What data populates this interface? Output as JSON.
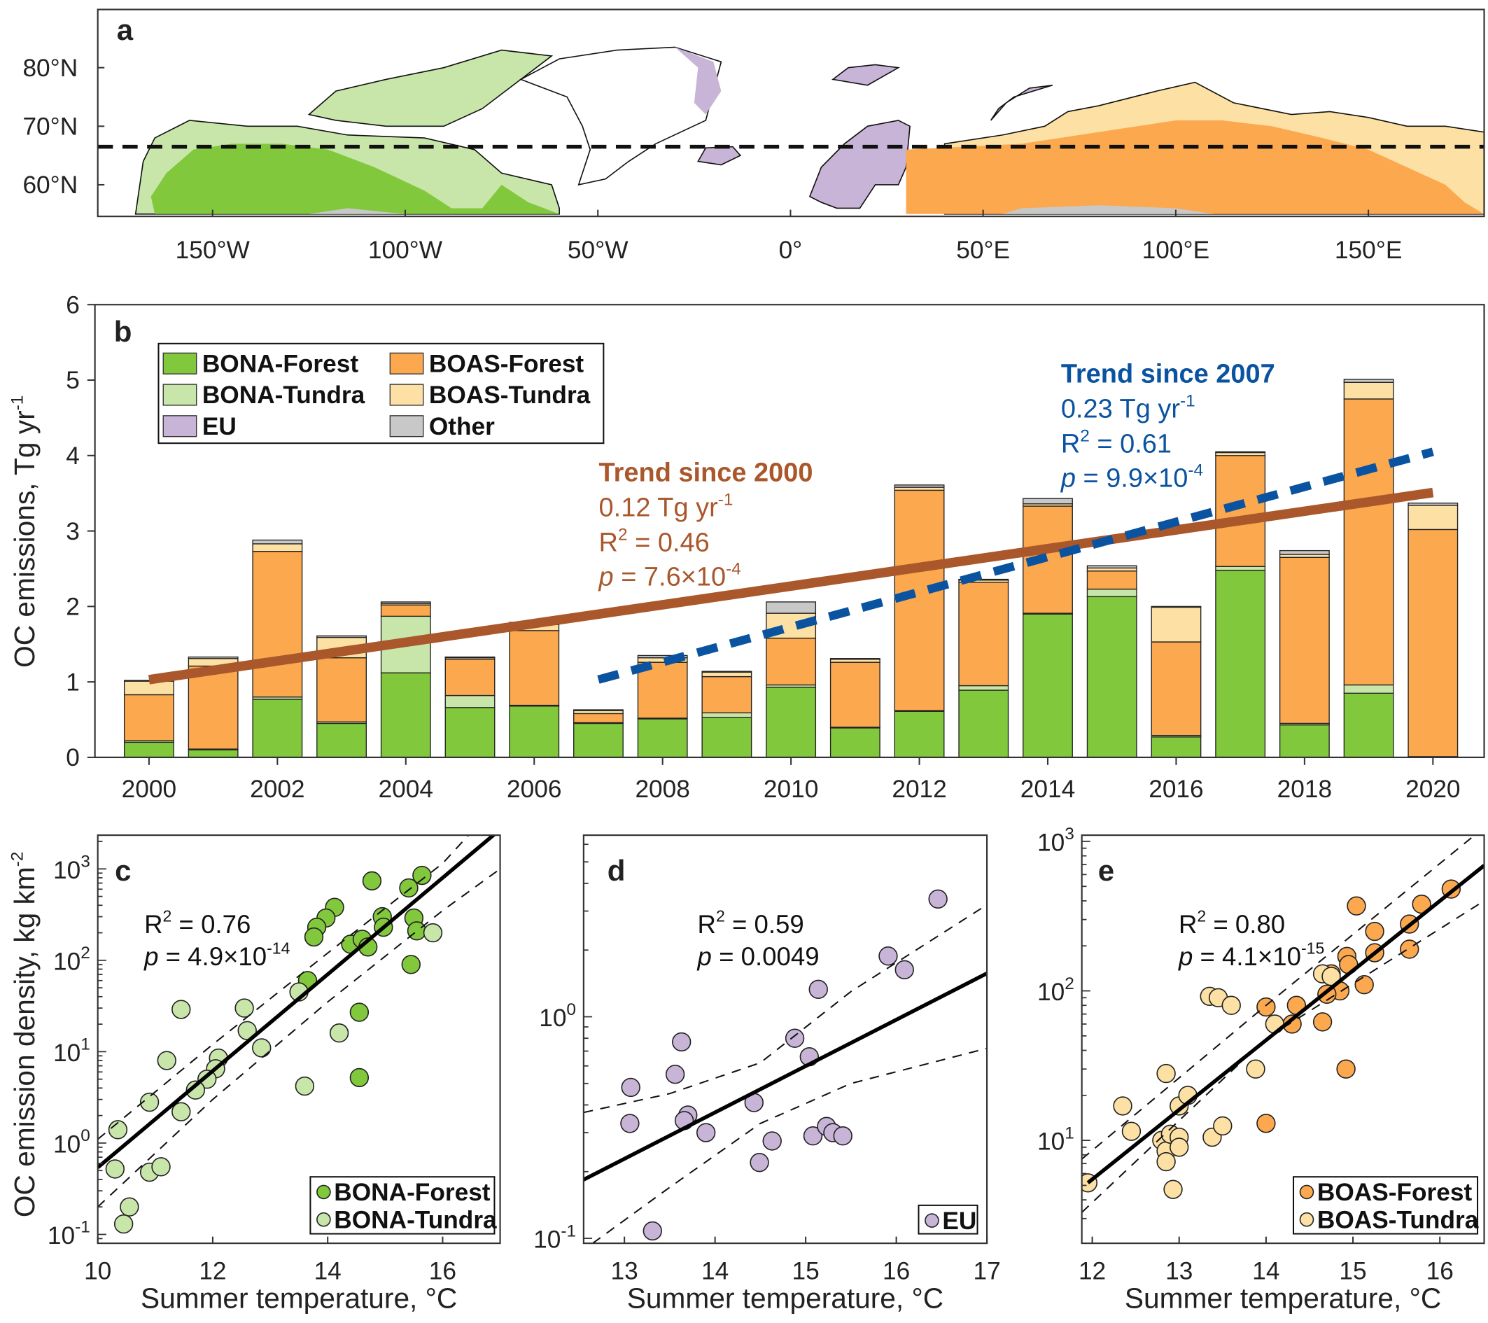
{
  "colors": {
    "BONA-Forest": "#82c83c",
    "BONA-Tundra": "#c8e6aa",
    "EU": "#c8b4d7",
    "BOAS-Forest": "#fba84f",
    "BOAS-Tundra": "#fde0a3",
    "Other": "#c8c8c8",
    "trend_2000": "#a9572b",
    "trend_2007": "#0a53a0"
  },
  "chart_data": [
    {
      "panel": "a",
      "type": "map",
      "label": "a",
      "ytick_values": [
        80,
        70,
        60
      ],
      "ytick_labels": [
        "80°N",
        "70°N",
        "60°N"
      ],
      "xtick_values": [
        -150,
        -100,
        -50,
        0,
        50,
        100,
        150
      ],
      "xtick_labels": [
        "150°W",
        "100°W",
        "50°W",
        "0°",
        "50°E",
        "100°E",
        "150°E"
      ],
      "arctic_circle_lat": 66.5,
      "regions": [
        "BONA-Forest",
        "BONA-Tundra",
        "EU",
        "BOAS-Forest",
        "BOAS-Tundra",
        "Other"
      ]
    },
    {
      "panel": "b",
      "type": "bar",
      "stacked": true,
      "label": "b",
      "ylabel": "OC emissions, Tg yr",
      "ylabel_sup": "-1",
      "ylim": [
        0,
        6
      ],
      "yticks": [
        0,
        1,
        2,
        3,
        4,
        5,
        6
      ],
      "xticks": [
        2000,
        2002,
        2004,
        2006,
        2008,
        2010,
        2012,
        2014,
        2016,
        2018,
        2020
      ],
      "categories": [
        2000,
        2001,
        2002,
        2003,
        2004,
        2005,
        2006,
        2007,
        2008,
        2009,
        2010,
        2011,
        2012,
        2013,
        2014,
        2015,
        2016,
        2017,
        2018,
        2019,
        2020
      ],
      "series": [
        {
          "name": "BONA-Forest",
          "values": [
            0.2,
            0.1,
            0.77,
            0.45,
            1.12,
            0.66,
            0.68,
            0.45,
            0.51,
            0.53,
            0.93,
            0.39,
            0.61,
            0.89,
            1.9,
            2.13,
            0.27,
            2.48,
            0.43,
            0.85,
            0.0
          ]
        },
        {
          "name": "BONA-Tundra",
          "values": [
            0.02,
            0.01,
            0.03,
            0.02,
            0.75,
            0.16,
            0.01,
            0.01,
            0.01,
            0.06,
            0.03,
            0.01,
            0.01,
            0.06,
            0.01,
            0.1,
            0.02,
            0.05,
            0.02,
            0.11,
            0.01
          ]
        },
        {
          "name": "EU",
          "values": [
            0,
            0,
            0,
            0,
            0,
            0,
            0,
            0,
            0,
            0,
            0,
            0,
            0,
            0,
            0,
            0,
            0,
            0,
            0,
            0,
            0
          ]
        },
        {
          "name": "BOAS-Forest",
          "values": [
            0.61,
            1.1,
            1.93,
            0.85,
            0.15,
            0.48,
            0.99,
            0.12,
            0.74,
            0.48,
            0.62,
            0.86,
            2.92,
            1.37,
            1.42,
            0.24,
            1.24,
            1.47,
            2.2,
            3.79,
            3.01
          ]
        },
        {
          "name": "BOAS-Tundra",
          "values": [
            0.18,
            0.1,
            0.1,
            0.27,
            0.02,
            0.02,
            0.08,
            0.04,
            0.06,
            0.06,
            0.33,
            0.04,
            0.04,
            0.03,
            0.03,
            0.04,
            0.46,
            0.04,
            0.04,
            0.22,
            0.32
          ]
        },
        {
          "name": "Other",
          "values": [
            0.01,
            0.02,
            0.05,
            0.02,
            0.02,
            0.01,
            0.03,
            0.01,
            0.03,
            0.01,
            0.15,
            0.01,
            0.03,
            0.01,
            0.07,
            0.03,
            0.01,
            0.01,
            0.05,
            0.04,
            0.03
          ]
        }
      ],
      "legend": [
        "BONA-Forest",
        "BOAS-Forest",
        "BONA-Tundra",
        "BOAS-Tundra",
        "EU",
        "Other"
      ],
      "legend_placement": "top-left",
      "trends": [
        {
          "id": "since2000",
          "title": "Trend since 2000",
          "slope": "0.12 Tg yr",
          "slope_sup": "-1",
          "r2": "= 0.46",
          "p": "= 7.6×10",
          "p_sup": "-4",
          "line": [
            [
              2000,
              1.03
            ],
            [
              2020,
              3.51
            ]
          ],
          "style": "solid"
        },
        {
          "id": "since2007",
          "title": "Trend since 2007",
          "slope": "0.23 Tg yr",
          "slope_sup": "-1",
          "r2": "= 0.61",
          "p": "= 9.9×10",
          "p_sup": "-4",
          "line": [
            [
              2007,
              1.03
            ],
            [
              2020,
              4.05
            ]
          ],
          "style": "dashed"
        }
      ]
    },
    {
      "panel": "c",
      "type": "scatter",
      "label": "c",
      "xlabel": "Summer temperature, °C",
      "ylabel": "OC emission density, kg km",
      "ylabel_sup": "-2",
      "xlim": [
        10,
        17
      ],
      "ylim": [
        0.08,
        2340
      ],
      "yscale": "log",
      "xticks": [
        10,
        12,
        14,
        16
      ],
      "yticks_exp": [
        -1,
        0,
        1,
        2,
        3
      ],
      "r2": "= 0.76",
      "p": "= 4.9×10",
      "p_sup": "-14",
      "legend_placement": "bottom-right",
      "series": [
        {
          "name": "BONA-Forest",
          "points": [
            [
              14.77,
              740
            ],
            [
              15.64,
              850
            ],
            [
              15.41,
              620
            ],
            [
              14.12,
              380
            ],
            [
              13.97,
              290
            ],
            [
              13.81,
              230
            ],
            [
              13.76,
              180
            ],
            [
              14.4,
              150
            ],
            [
              14.6,
              170
            ],
            [
              14.7,
              140
            ],
            [
              14.95,
              300
            ],
            [
              14.97,
              230
            ],
            [
              15.5,
              290
            ],
            [
              15.55,
              210
            ],
            [
              13.65,
              60
            ],
            [
              14.55,
              27
            ],
            [
              15.45,
              90
            ],
            [
              14.55,
              5.2
            ]
          ]
        },
        {
          "name": "BONA-Tundra",
          "points": [
            [
              15.83,
              200
            ],
            [
              13.5,
              45
            ],
            [
              11.45,
              29
            ],
            [
              12.55,
              30
            ],
            [
              12.6,
              17
            ],
            [
              12.1,
              8.5
            ],
            [
              12.05,
              6.5
            ],
            [
              11.9,
              5
            ],
            [
              12.85,
              11
            ],
            [
              11.2,
              8
            ],
            [
              14.2,
              16
            ],
            [
              13.6,
              4.2
            ],
            [
              11.7,
              3.8
            ],
            [
              11.45,
              2.2
            ],
            [
              10.9,
              2.8
            ],
            [
              10.35,
              1.4
            ],
            [
              10.3,
              0.52
            ],
            [
              10.9,
              0.48
            ],
            [
              11.1,
              0.55
            ],
            [
              10.55,
              0.2
            ],
            [
              10.45,
              0.13
            ]
          ]
        }
      ],
      "fit": [
        [
          10,
          0.54
        ],
        [
          17,
          2700
        ]
      ],
      "ci_upper": [
        [
          10,
          1.1
        ],
        [
          12,
          12
        ],
        [
          14,
          120
        ],
        [
          16,
          1150
        ],
        [
          16.45,
          2340
        ]
      ],
      "ci_lower": [
        [
          10,
          0.2
        ],
        [
          12,
          3
        ],
        [
          14,
          35
        ],
        [
          16,
          350
        ],
        [
          17,
          1000
        ]
      ]
    },
    {
      "panel": "d",
      "type": "scatter",
      "label": "d",
      "xlabel": "Summer temperature, °C",
      "xlim": [
        12.55,
        17
      ],
      "ylim": [
        0.095,
        6.6
      ],
      "yscale": "log",
      "xticks": [
        13,
        14,
        15,
        16,
        17
      ],
      "yticks_exp": [
        -1,
        0
      ],
      "r2": "= 0.59",
      "p": "= 0.0049",
      "legend_placement": "bottom-right",
      "series": [
        {
          "name": "EU",
          "points": [
            [
              16.46,
              3.4
            ],
            [
              15.91,
              1.88
            ],
            [
              16.09,
              1.63
            ],
            [
              15.14,
              1.33
            ],
            [
              14.88,
              0.8
            ],
            [
              15.04,
              0.66
            ],
            [
              13.63,
              0.77
            ],
            [
              13.56,
              0.55
            ],
            [
              13.07,
              0.48
            ],
            [
              13.06,
              0.33
            ],
            [
              13.7,
              0.36
            ],
            [
              13.66,
              0.34
            ],
            [
              13.9,
              0.3
            ],
            [
              14.43,
              0.41
            ],
            [
              14.63,
              0.275
            ],
            [
              14.49,
              0.22
            ],
            [
              15.08,
              0.29
            ],
            [
              15.23,
              0.32
            ],
            [
              15.3,
              0.3
            ],
            [
              15.41,
              0.29
            ],
            [
              13.31,
              0.108
            ]
          ]
        }
      ],
      "fit": [
        [
          12.55,
          0.184
        ],
        [
          17,
          1.57
        ]
      ],
      "ci_upper": [
        [
          12.55,
          0.37
        ],
        [
          13.5,
          0.45
        ],
        [
          14.5,
          0.62
        ],
        [
          15.5,
          1.3
        ],
        [
          17,
          3.2
        ]
      ],
      "ci_lower": [
        [
          12.65,
          0.095
        ],
        [
          13.5,
          0.17
        ],
        [
          14.5,
          0.33
        ],
        [
          15.5,
          0.5
        ],
        [
          17,
          0.72
        ]
      ]
    },
    {
      "panel": "e",
      "type": "scatter",
      "label": "e",
      "xlabel": "Summer temperature, °C",
      "xlim": [
        11.88,
        16.51
      ],
      "ylim": [
        2.05,
        1100
      ],
      "yscale": "log",
      "xticks": [
        12,
        13,
        14,
        15,
        16
      ],
      "yticks_exp": [
        1,
        2,
        3
      ],
      "r2": "= 0.80",
      "p": "= 4.1×10",
      "p_sup": "-15",
      "legend_placement": "bottom-right",
      "series": [
        {
          "name": "BOAS-Forest",
          "points": [
            [
              16.13,
              480
            ],
            [
              15.79,
              380
            ],
            [
              15.65,
              280
            ],
            [
              15.04,
              370
            ],
            [
              15.25,
              250
            ],
            [
              15.65,
              190
            ],
            [
              15.25,
              180
            ],
            [
              14.93,
              170
            ],
            [
              14.95,
              150
            ],
            [
              15.13,
              110
            ],
            [
              14.75,
              130
            ],
            [
              14.85,
              100
            ],
            [
              14.7,
              95
            ],
            [
              14.35,
              80
            ],
            [
              14.3,
              60
            ],
            [
              14.0,
              78
            ],
            [
              14.65,
              62
            ],
            [
              14.92,
              30
            ],
            [
              14.0,
              13
            ]
          ]
        },
        {
          "name": "BOAS-Tundra",
          "points": [
            [
              11.95,
              5.2
            ],
            [
              12.35,
              17
            ],
            [
              12.45,
              11.5
            ],
            [
              12.8,
              10
            ],
            [
              12.85,
              8.5
            ],
            [
              12.85,
              7.2
            ],
            [
              12.9,
              11
            ],
            [
              13.0,
              10.5
            ],
            [
              13.0,
              9
            ],
            [
              12.93,
              4.7
            ],
            [
              13.0,
              17
            ],
            [
              13.1,
              20
            ],
            [
              12.85,
              28
            ],
            [
              13.38,
              10.5
            ],
            [
              13.5,
              12.5
            ],
            [
              13.35,
              92
            ],
            [
              13.45,
              90
            ],
            [
              13.6,
              80
            ],
            [
              13.88,
              30
            ],
            [
              14.1,
              60
            ],
            [
              14.65,
              130
            ],
            [
              14.75,
              125
            ]
          ]
        }
      ],
      "fit": [
        [
          11.95,
          5.2
        ],
        [
          16.51,
          690
        ]
      ],
      "ci_upper": [
        [
          11.88,
          7.5
        ],
        [
          14,
          80
        ],
        [
          16.4,
          1100
        ]
      ],
      "ci_lower": [
        [
          11.88,
          3.3
        ],
        [
          14,
          48
        ],
        [
          16.51,
          400
        ]
      ]
    }
  ]
}
